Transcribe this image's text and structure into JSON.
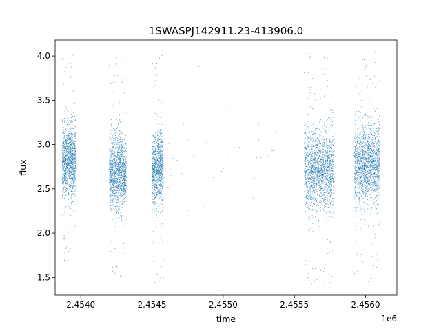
{
  "chart_data": {
    "type": "scatter",
    "title": "1SWASPJ142911.23-413906.0",
    "xlabel": "time",
    "ylabel": "flux",
    "x_offset_label": "1e6",
    "x_scale": 1000000,
    "xlim": [
      2453820,
      2456220
    ],
    "ylim": [
      1.3,
      4.18
    ],
    "x_ticks": [
      {
        "value": 2454000,
        "label": "2.4540"
      },
      {
        "value": 2454500,
        "label": "2.4545"
      },
      {
        "value": 2455000,
        "label": "2.4550"
      },
      {
        "value": 2455500,
        "label": "2.4555"
      },
      {
        "value": 2456000,
        "label": "2.4560"
      }
    ],
    "y_ticks": [
      {
        "value": 1.5,
        "label": "1.5"
      },
      {
        "value": 2.0,
        "label": "2.0"
      },
      {
        "value": 2.5,
        "label": "2.5"
      },
      {
        "value": 3.0,
        "label": "3.0"
      },
      {
        "value": 3.5,
        "label": "3.5"
      },
      {
        "value": 4.0,
        "label": "4.0"
      }
    ],
    "grid": false,
    "legend": "none",
    "marker_color": "#1f77b4",
    "marker_size": "tiny",
    "series": [
      {
        "segments": [
          {
            "x_range": [
              2453870,
              2453970
            ],
            "median": 2.82,
            "spread": 0.25,
            "outlier_range": [
              1.5,
              4.05
            ],
            "approx_points": 1500
          },
          {
            "x_range": [
              2454200,
              2454320
            ],
            "median": 2.68,
            "spread": 0.28,
            "outlier_range": [
              1.47,
              3.98
            ],
            "approx_points": 1600
          },
          {
            "x_range": [
              2454500,
              2454580
            ],
            "median": 2.74,
            "spread": 0.27,
            "outlier_range": [
              1.42,
              4.04
            ],
            "approx_points": 1200
          },
          {
            "x_range": [
              2454580,
              2455450
            ],
            "median": 2.9,
            "spread": 0.3,
            "outlier_range": [
              2.05,
              3.95
            ],
            "approx_points": 60
          },
          {
            "x_range": [
              2455570,
              2455780
            ],
            "median": 2.72,
            "spread": 0.3,
            "outlier_range": [
              1.42,
              4.05
            ],
            "approx_points": 2200
          },
          {
            "x_range": [
              2455920,
              2456100
            ],
            "median": 2.78,
            "spread": 0.28,
            "outlier_range": [
              1.43,
              4.05
            ],
            "approx_points": 2000
          }
        ]
      }
    ]
  }
}
